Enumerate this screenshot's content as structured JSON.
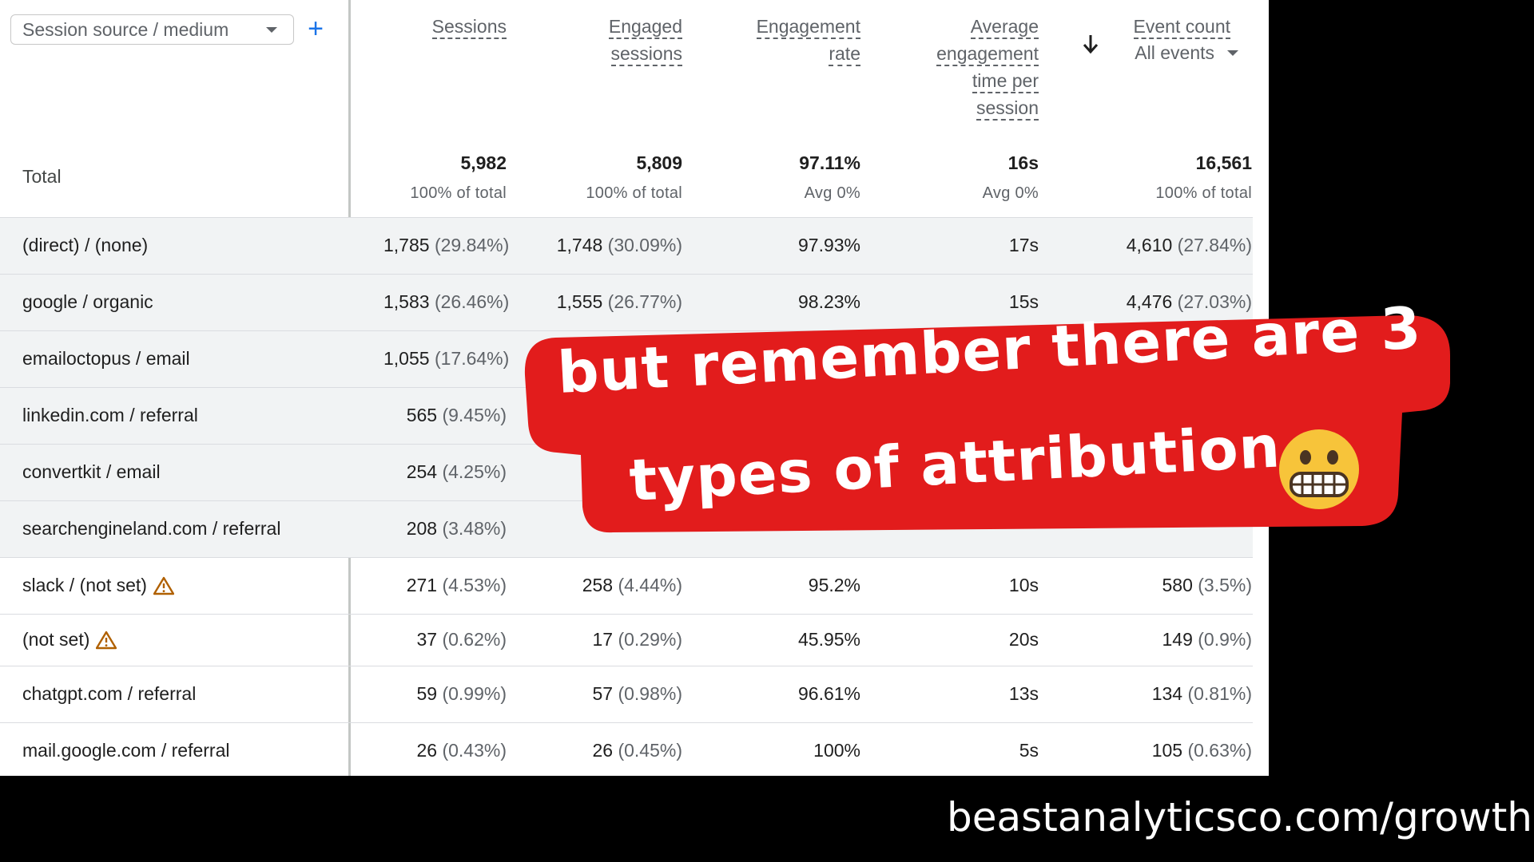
{
  "dimension": {
    "label": "Session source / medium",
    "add_icon": "plus-icon"
  },
  "columns": [
    {
      "key": "sessions",
      "lines": [
        "Sessions"
      ]
    },
    {
      "key": "engaged_sessions",
      "lines": [
        "Engaged",
        "sessions"
      ]
    },
    {
      "key": "engagement_rate",
      "lines": [
        "Engagement",
        "rate"
      ]
    },
    {
      "key": "avg_engagement_time",
      "lines": [
        "Average",
        "engagement",
        "time per",
        "session"
      ]
    },
    {
      "key": "event_count",
      "lines": [
        "Event count"
      ],
      "sub": "All events",
      "sorted": "descending"
    }
  ],
  "total": {
    "label": "Total",
    "values": [
      "5,982",
      "5,809",
      "97.11%",
      "16s",
      "16,561"
    ],
    "subs": [
      "100% of total",
      "100% of total",
      "Avg 0%",
      "Avg 0%",
      "100% of total"
    ]
  },
  "rows": [
    {
      "name": "(direct) / (none)",
      "warning": false,
      "cells": [
        [
          "1,785",
          "(29.84%)"
        ],
        [
          "1,748",
          "(30.09%)"
        ],
        [
          "97.93%",
          ""
        ],
        [
          "17s",
          ""
        ],
        [
          "4,610",
          "(27.84%)"
        ]
      ]
    },
    {
      "name": "google / organic",
      "warning": false,
      "cells": [
        [
          "1,583",
          "(26.46%)"
        ],
        [
          "1,555",
          "(26.77%)"
        ],
        [
          "98.23%",
          ""
        ],
        [
          "15s",
          ""
        ],
        [
          "4,476",
          "(27.03%)"
        ]
      ]
    },
    {
      "name": "emailoctopus / email",
      "warning": false,
      "cells": [
        [
          "1,055",
          "(17.64%)"
        ],
        [
          "",
          ""
        ],
        [
          "",
          ""
        ],
        [
          "",
          ""
        ],
        [
          "",
          ""
        ]
      ]
    },
    {
      "name": "linkedin.com / referral",
      "warning": false,
      "cells": [
        [
          "565",
          "(9.45%)"
        ],
        [
          "",
          ""
        ],
        [
          "",
          ""
        ],
        [
          "",
          ""
        ],
        [
          "",
          ""
        ]
      ]
    },
    {
      "name": "convertkit / email",
      "warning": false,
      "cells": [
        [
          "254",
          "(4.25%)"
        ],
        [
          "",
          ""
        ],
        [
          "",
          ""
        ],
        [
          "",
          ""
        ],
        [
          "",
          ""
        ]
      ]
    },
    {
      "name": "searchengineland.com / referral",
      "warning": false,
      "cells": [
        [
          "208",
          "(3.48%)"
        ],
        [
          "",
          ""
        ],
        [
          "",
          ""
        ],
        [
          "",
          ""
        ],
        [
          "",
          ""
        ]
      ]
    },
    {
      "name": "slack / (not set)",
      "warning": true,
      "cells": [
        [
          "271",
          "(4.53%)"
        ],
        [
          "258",
          "(4.44%)"
        ],
        [
          "95.2%",
          ""
        ],
        [
          "10s",
          ""
        ],
        [
          "580",
          "(3.5%)"
        ]
      ]
    },
    {
      "name": "(not set)",
      "warning": true,
      "cells": [
        [
          "37",
          "(0.62%)"
        ],
        [
          "17",
          "(0.29%)"
        ],
        [
          "45.95%",
          ""
        ],
        [
          "20s",
          ""
        ],
        [
          "149",
          "(0.9%)"
        ]
      ]
    },
    {
      "name": "chatgpt.com / referral",
      "warning": false,
      "cells": [
        [
          "59",
          "(0.99%)"
        ],
        [
          "57",
          "(0.98%)"
        ],
        [
          "96.61%",
          ""
        ],
        [
          "13s",
          ""
        ],
        [
          "134",
          "(0.81%)"
        ]
      ]
    },
    {
      "name": "mail.google.com / referral",
      "warning": false,
      "cells": [
        [
          "26",
          "(0.43%)"
        ],
        [
          "26",
          "(0.45%)"
        ],
        [
          "100%",
          ""
        ],
        [
          "5s",
          ""
        ],
        [
          "105",
          "(0.63%)"
        ]
      ]
    }
  ],
  "overlay": {
    "line1": "but remember there are 3",
    "line2": "types of attribution",
    "emoji": "grimacing-face-emoji",
    "banner_color": "#e21c1c"
  },
  "footer": {
    "url": "beastanalyticsco.com/growth"
  },
  "colors": {
    "accent": "#1a73e8",
    "warning": "#b06000",
    "banner": "#e21c1c"
  }
}
